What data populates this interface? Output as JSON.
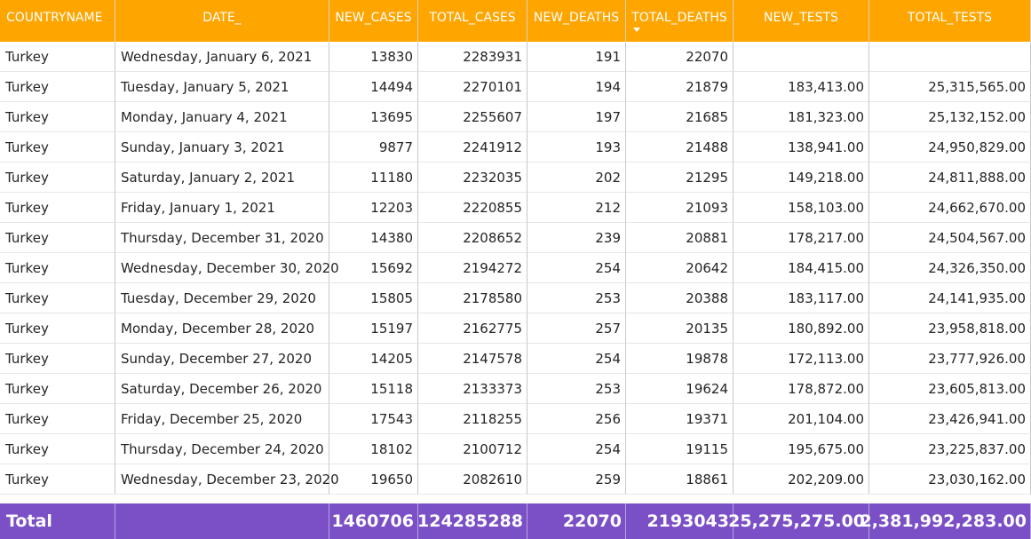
{
  "table": {
    "columns": [
      "COUNTRYNAME",
      "DATE_",
      "NEW_CASES",
      "TOTAL_CASES",
      "NEW_DEATHS",
      "TOTAL_DEATHS",
      "NEW_TESTS",
      "TOTAL_TESTS"
    ],
    "sorted_column": "TOTAL_DEATHS",
    "sort_direction": "descending",
    "rows": [
      [
        "Turkey",
        "Wednesday, January 6, 2021",
        "13830",
        "2283931",
        "191",
        "22070",
        "",
        ""
      ],
      [
        "Turkey",
        "Tuesday, January 5, 2021",
        "14494",
        "2270101",
        "194",
        "21879",
        "183,413.00",
        "25,315,565.00"
      ],
      [
        "Turkey",
        "Monday, January 4, 2021",
        "13695",
        "2255607",
        "197",
        "21685",
        "181,323.00",
        "25,132,152.00"
      ],
      [
        "Turkey",
        "Sunday, January 3, 2021",
        "9877",
        "2241912",
        "193",
        "21488",
        "138,941.00",
        "24,950,829.00"
      ],
      [
        "Turkey",
        "Saturday, January 2, 2021",
        "11180",
        "2232035",
        "202",
        "21295",
        "149,218.00",
        "24,811,888.00"
      ],
      [
        "Turkey",
        "Friday, January 1, 2021",
        "12203",
        "2220855",
        "212",
        "21093",
        "158,103.00",
        "24,662,670.00"
      ],
      [
        "Turkey",
        "Thursday, December 31, 2020",
        "14380",
        "2208652",
        "239",
        "20881",
        "178,217.00",
        "24,504,567.00"
      ],
      [
        "Turkey",
        "Wednesday, December 30, 2020",
        "15692",
        "2194272",
        "254",
        "20642",
        "184,415.00",
        "24,326,350.00"
      ],
      [
        "Turkey",
        "Tuesday, December 29, 2020",
        "15805",
        "2178580",
        "253",
        "20388",
        "183,117.00",
        "24,141,935.00"
      ],
      [
        "Turkey",
        "Monday, December 28, 2020",
        "15197",
        "2162775",
        "257",
        "20135",
        "180,892.00",
        "23,958,818.00"
      ],
      [
        "Turkey",
        "Sunday, December 27, 2020",
        "14205",
        "2147578",
        "254",
        "19878",
        "172,113.00",
        "23,777,926.00"
      ],
      [
        "Turkey",
        "Saturday, December 26, 2020",
        "15118",
        "2133373",
        "253",
        "19624",
        "178,872.00",
        "23,605,813.00"
      ],
      [
        "Turkey",
        "Friday, December 25, 2020",
        "17543",
        "2118255",
        "256",
        "19371",
        "201,104.00",
        "23,426,941.00"
      ],
      [
        "Turkey",
        "Thursday, December 24, 2020",
        "18102",
        "2100712",
        "254",
        "19115",
        "195,675.00",
        "23,225,837.00"
      ],
      [
        "Turkey",
        "Wednesday, December 23, 2020",
        "19650",
        "2082610",
        "259",
        "18861",
        "202,209.00",
        "23,030,162.00"
      ]
    ],
    "total": [
      "Total",
      "",
      "1460706",
      "124285288",
      "22070",
      "2193043",
      "25,275,275.00",
      "2,381,992,283.00"
    ]
  },
  "colors": {
    "header_bg": "#FFA500",
    "total_bg": "#7B4FC6",
    "text": "#252423"
  }
}
